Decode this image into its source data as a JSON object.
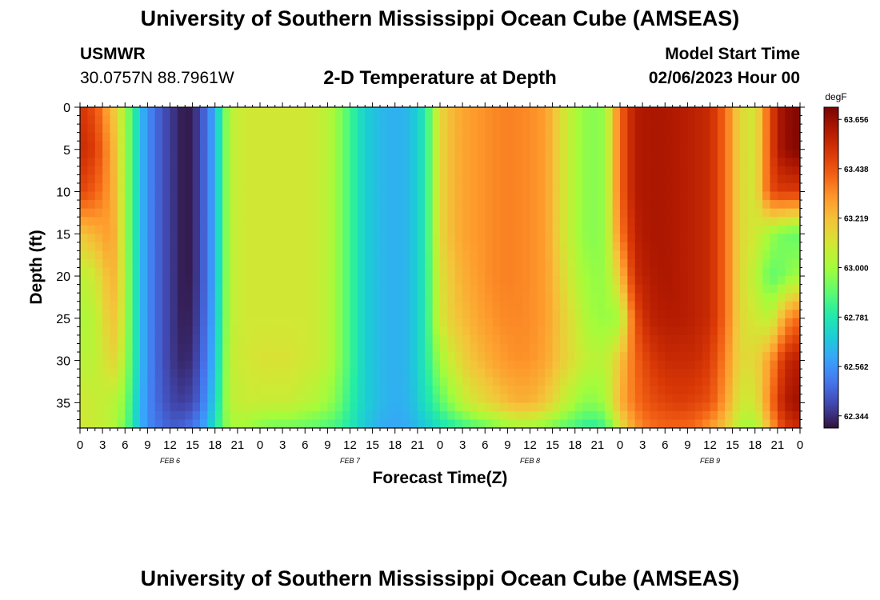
{
  "header": {
    "title": "University of Southern Mississippi Ocean Cube (AMSEAS)",
    "station": "USMWR",
    "coords": "30.0757N  88.7961W",
    "subtitle": "2-D Temperature at Depth",
    "start_label": "Model Start Time",
    "start_value": "02/06/2023 Hour 00",
    "footer_title": "University of Southern Mississippi Ocean Cube (AMSEAS)"
  },
  "chart_data": {
    "type": "heatmap",
    "title": "2-D Temperature at Depth",
    "xlabel": "Forecast Time(Z)",
    "ylabel": "Depth (ft)",
    "units": "degF",
    "x_hours": [
      0,
      96
    ],
    "x_ticks": [
      "0",
      "3",
      "6",
      "9",
      "12",
      "15",
      "18",
      "21",
      "0",
      "3",
      "6",
      "9",
      "12",
      "15",
      "18",
      "21",
      "0",
      "3",
      "6",
      "9",
      "12",
      "15",
      "18",
      "21",
      "0",
      "3",
      "6",
      "9",
      "12",
      "15",
      "18",
      "21",
      "0"
    ],
    "day_labels": [
      "FEB 6",
      "FEB 7",
      "FEB 8",
      "FEB 9"
    ],
    "y_ticks": [
      0,
      5,
      10,
      15,
      20,
      25,
      30,
      35
    ],
    "ylim": [
      0,
      38
    ],
    "colorbar_ticks": [
      "63.656",
      "63.438",
      "63.219",
      "63.000",
      "62.781",
      "62.562",
      "62.344"
    ],
    "colorbar_range": [
      62.29,
      63.71
    ],
    "colormap": [
      "#30123b",
      "#4145ab",
      "#4675ed",
      "#39a2fc",
      "#1bcfd4",
      "#24eca6",
      "#61fc6c",
      "#a4fc3b",
      "#d1e834",
      "#f3c63a",
      "#fe9b2d",
      "#f36315",
      "#d93806",
      "#b11901",
      "#7a0403"
    ],
    "profiles_hours": [
      0,
      2,
      4,
      5,
      6,
      7,
      8,
      9,
      10,
      11,
      12,
      13,
      14,
      15,
      16,
      17,
      18,
      19,
      20,
      22,
      24,
      26,
      28,
      30,
      32,
      34,
      36,
      38,
      40,
      42,
      44,
      46,
      48,
      50,
      52,
      54,
      56,
      58,
      60,
      62,
      64,
      66,
      68,
      70,
      72,
      74,
      76,
      78,
      80,
      82,
      84,
      86,
      88,
      90,
      92,
      93,
      94,
      96
    ],
    "profiles_depths": [
      0,
      5,
      10,
      15,
      20,
      25,
      30,
      35,
      38
    ],
    "temperature": [
      [
        63.52,
        63.55,
        63.48,
        63.2,
        63.05,
        63.02,
        63.05,
        63.1,
        63.1
      ],
      [
        63.45,
        63.5,
        63.42,
        63.25,
        63.1,
        63.05,
        63.05,
        63.08,
        63.08
      ],
      [
        63.25,
        63.3,
        63.3,
        63.3,
        63.25,
        63.2,
        63.15,
        63.05,
        63.05
      ],
      [
        63.15,
        63.18,
        63.2,
        63.22,
        63.22,
        63.2,
        63.15,
        63.02,
        63.0
      ],
      [
        63.0,
        63.0,
        63.0,
        63.0,
        63.02,
        63.02,
        63.0,
        62.95,
        62.92
      ],
      [
        62.85,
        62.85,
        62.85,
        62.85,
        62.85,
        62.85,
        62.85,
        62.8,
        62.78
      ],
      [
        62.68,
        62.68,
        62.68,
        62.68,
        62.68,
        62.68,
        62.68,
        62.65,
        62.65
      ],
      [
        62.55,
        62.55,
        62.55,
        62.55,
        62.55,
        62.55,
        62.55,
        62.55,
        62.55
      ],
      [
        62.48,
        62.48,
        62.48,
        62.48,
        62.48,
        62.48,
        62.48,
        62.48,
        62.5
      ],
      [
        62.42,
        62.42,
        62.42,
        62.42,
        62.42,
        62.42,
        62.42,
        62.44,
        62.48
      ],
      [
        62.38,
        62.38,
        62.38,
        62.38,
        62.38,
        62.38,
        62.38,
        62.4,
        62.45
      ],
      [
        62.33,
        62.33,
        62.33,
        62.33,
        62.33,
        62.33,
        62.34,
        62.38,
        62.45
      ],
      [
        62.3,
        62.3,
        62.3,
        62.3,
        62.3,
        62.31,
        62.33,
        62.38,
        62.47
      ],
      [
        62.32,
        62.32,
        62.32,
        62.32,
        62.32,
        62.33,
        62.35,
        62.4,
        62.5
      ],
      [
        62.4,
        62.4,
        62.4,
        62.4,
        62.4,
        62.41,
        62.43,
        62.47,
        62.55
      ],
      [
        62.5,
        62.5,
        62.5,
        62.5,
        62.5,
        62.51,
        62.53,
        62.58,
        62.65
      ],
      [
        62.63,
        62.63,
        62.63,
        62.63,
        62.63,
        62.64,
        62.66,
        62.7,
        62.76
      ],
      [
        62.85,
        62.85,
        62.85,
        62.85,
        62.85,
        62.86,
        62.88,
        62.9,
        62.9
      ],
      [
        63.05,
        63.05,
        63.05,
        63.05,
        63.05,
        63.05,
        63.06,
        63.05,
        63.0
      ],
      [
        63.1,
        63.1,
        63.1,
        63.1,
        63.1,
        63.1,
        63.1,
        63.08,
        63.0
      ],
      [
        63.1,
        63.1,
        63.1,
        63.1,
        63.1,
        63.1,
        63.12,
        63.08,
        62.95
      ],
      [
        63.1,
        63.1,
        63.1,
        63.1,
        63.1,
        63.1,
        63.12,
        63.08,
        62.92
      ],
      [
        63.1,
        63.1,
        63.1,
        63.1,
        63.1,
        63.1,
        63.12,
        63.08,
        62.92
      ],
      [
        63.1,
        63.1,
        63.1,
        63.1,
        63.1,
        63.1,
        63.1,
        63.05,
        62.9
      ],
      [
        63.08,
        63.08,
        63.08,
        63.08,
        63.08,
        63.08,
        63.08,
        63.02,
        62.88
      ],
      [
        63.0,
        63.0,
        63.0,
        63.0,
        63.0,
        63.0,
        63.0,
        62.95,
        62.85
      ],
      [
        62.85,
        62.85,
        62.85,
        62.85,
        62.85,
        62.85,
        62.85,
        62.82,
        62.78
      ],
      [
        62.7,
        62.7,
        62.7,
        62.7,
        62.7,
        62.7,
        62.7,
        62.7,
        62.68
      ],
      [
        62.65,
        62.65,
        62.65,
        62.65,
        62.65,
        62.65,
        62.65,
        62.65,
        62.62
      ],
      [
        62.62,
        62.62,
        62.62,
        62.62,
        62.62,
        62.62,
        62.62,
        62.62,
        62.6
      ],
      [
        62.65,
        62.65,
        62.65,
        62.65,
        62.65,
        62.65,
        62.65,
        62.64,
        62.62
      ],
      [
        62.78,
        62.78,
        62.78,
        62.78,
        62.78,
        62.78,
        62.78,
        62.75,
        62.68
      ],
      [
        63.15,
        63.15,
        63.15,
        63.15,
        63.12,
        63.1,
        63.0,
        62.88,
        62.75
      ],
      [
        63.25,
        63.25,
        63.25,
        63.25,
        63.22,
        63.2,
        63.12,
        63.0,
        62.8
      ],
      [
        63.3,
        63.3,
        63.3,
        63.3,
        63.28,
        63.25,
        63.2,
        63.1,
        62.85
      ],
      [
        63.32,
        63.32,
        63.32,
        63.32,
        63.32,
        63.3,
        63.25,
        63.15,
        62.9
      ],
      [
        63.35,
        63.35,
        63.35,
        63.35,
        63.35,
        63.33,
        63.3,
        63.2,
        62.95
      ],
      [
        63.35,
        63.35,
        63.35,
        63.35,
        63.35,
        63.34,
        63.32,
        63.25,
        63.0
      ],
      [
        63.33,
        63.33,
        63.33,
        63.33,
        63.33,
        63.33,
        63.32,
        63.25,
        63.0
      ],
      [
        63.3,
        63.3,
        63.3,
        63.3,
        63.3,
        63.3,
        63.28,
        63.2,
        62.95
      ],
      [
        63.15,
        63.15,
        63.15,
        63.15,
        63.18,
        63.2,
        63.2,
        63.1,
        62.9
      ],
      [
        63.02,
        63.02,
        63.02,
        63.02,
        63.05,
        63.1,
        63.12,
        63.0,
        62.85
      ],
      [
        62.95,
        62.95,
        62.95,
        62.95,
        62.98,
        63.0,
        63.05,
        62.95,
        62.8
      ],
      [
        62.98,
        62.98,
        62.98,
        62.98,
        62.98,
        62.98,
        63.05,
        63.0,
        62.85
      ],
      [
        63.4,
        63.4,
        63.4,
        63.35,
        63.2,
        63.0,
        63.2,
        63.25,
        63.1
      ],
      [
        63.6,
        63.6,
        63.6,
        63.58,
        63.55,
        63.45,
        63.4,
        63.38,
        63.3
      ],
      [
        63.62,
        63.62,
        63.62,
        63.62,
        63.6,
        63.58,
        63.5,
        63.45,
        63.38
      ],
      [
        63.62,
        63.62,
        63.62,
        63.62,
        63.62,
        63.6,
        63.55,
        63.48,
        63.4
      ],
      [
        63.6,
        63.6,
        63.6,
        63.6,
        63.6,
        63.6,
        63.55,
        63.5,
        63.4
      ],
      [
        63.58,
        63.58,
        63.58,
        63.58,
        63.58,
        63.58,
        63.55,
        63.48,
        63.38
      ],
      [
        63.55,
        63.55,
        63.55,
        63.55,
        63.55,
        63.55,
        63.5,
        63.45,
        63.3
      ],
      [
        63.4,
        63.4,
        63.4,
        63.4,
        63.4,
        63.4,
        63.35,
        63.3,
        63.2
      ],
      [
        63.15,
        63.15,
        63.15,
        63.15,
        63.15,
        63.15,
        63.15,
        63.1,
        63.02
      ],
      [
        63.1,
        63.1,
        63.1,
        63.1,
        63.05,
        63.1,
        63.15,
        63.1,
        63.0
      ],
      [
        63.45,
        63.45,
        63.45,
        63.0,
        62.9,
        63.05,
        63.3,
        63.35,
        63.25
      ],
      [
        63.6,
        63.6,
        63.5,
        62.95,
        62.9,
        63.15,
        63.42,
        63.5,
        63.4
      ],
      [
        63.66,
        63.66,
        63.5,
        62.92,
        62.95,
        63.3,
        63.55,
        63.6,
        63.5
      ],
      [
        63.7,
        63.7,
        63.5,
        62.9,
        63.0,
        63.4,
        63.6,
        63.65,
        63.55
      ]
    ]
  }
}
